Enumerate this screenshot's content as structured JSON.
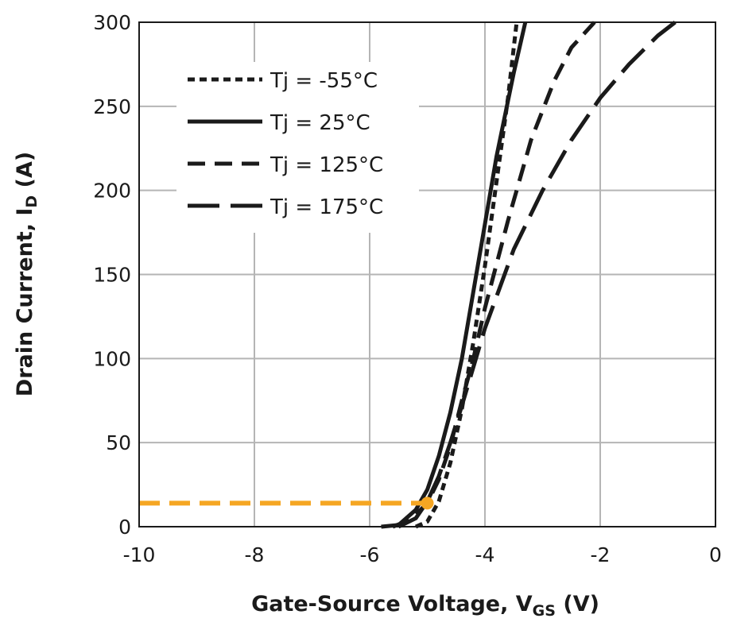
{
  "chart_data": {
    "type": "line",
    "xlabel": "Gate-Source Voltage, V",
    "xlabel_sub": "GS",
    "xlabel_unit": " (V)",
    "ylabel": "Drain Current, I",
    "ylabel_sub": "D",
    "ylabel_unit": " (A)",
    "xlim": [
      -10,
      0
    ],
    "ylim": [
      0,
      300
    ],
    "xticks": [
      -10,
      -8,
      -6,
      -4,
      -2,
      0
    ],
    "yticks": [
      0,
      50,
      100,
      150,
      200,
      250,
      300
    ],
    "grid": true,
    "legend_position": "top-left",
    "series": [
      {
        "name": "Tj = -55°C",
        "dash": "short-dash",
        "color": "#1a1a1a",
        "points": [
          [
            -5.2,
            0
          ],
          [
            -5.0,
            3
          ],
          [
            -4.8,
            15
          ],
          [
            -4.6,
            38
          ],
          [
            -4.4,
            70
          ],
          [
            -4.2,
            110
          ],
          [
            -4.0,
            155
          ],
          [
            -3.8,
            205
          ],
          [
            -3.6,
            255
          ],
          [
            -3.45,
            300
          ]
        ]
      },
      {
        "name": "Tj = 25°C",
        "dash": "solid",
        "color": "#1a1a1a",
        "points": [
          [
            -5.8,
            0
          ],
          [
            -5.5,
            1
          ],
          [
            -5.2,
            10
          ],
          [
            -5.0,
            22
          ],
          [
            -4.8,
            42
          ],
          [
            -4.6,
            68
          ],
          [
            -4.4,
            100
          ],
          [
            -4.2,
            140
          ],
          [
            -4.0,
            180
          ],
          [
            -3.8,
            220
          ],
          [
            -3.5,
            270
          ],
          [
            -3.3,
            300
          ]
        ]
      },
      {
        "name": "Tj = 125°C",
        "dash": "medium-dash",
        "color": "#1a1a1a",
        "points": [
          [
            -5.6,
            0
          ],
          [
            -5.3,
            4
          ],
          [
            -5.0,
            14
          ],
          [
            -4.8,
            28
          ],
          [
            -4.6,
            48
          ],
          [
            -4.4,
            75
          ],
          [
            -4.2,
            100
          ],
          [
            -4.0,
            130
          ],
          [
            -3.6,
            182
          ],
          [
            -3.2,
            230
          ],
          [
            -2.8,
            265
          ],
          [
            -2.5,
            285
          ],
          [
            -2.1,
            300
          ]
        ]
      },
      {
        "name": "Tj = 175°C",
        "dash": "long-dash",
        "color": "#1a1a1a",
        "points": [
          [
            -5.5,
            0
          ],
          [
            -5.2,
            5
          ],
          [
            -5.0,
            15
          ],
          [
            -4.8,
            30
          ],
          [
            -4.6,
            50
          ],
          [
            -4.4,
            72
          ],
          [
            -4.2,
            95
          ],
          [
            -4.0,
            118
          ],
          [
            -3.5,
            165
          ],
          [
            -3.0,
            200
          ],
          [
            -2.5,
            230
          ],
          [
            -2.0,
            255
          ],
          [
            -1.5,
            275
          ],
          [
            -1.0,
            292
          ],
          [
            -0.7,
            300
          ]
        ]
      }
    ],
    "annotations": [
      {
        "type": "reference-line",
        "color": "#f5a623",
        "from": [
          -10,
          14
        ],
        "to": [
          -5.0,
          14
        ],
        "marker_at": [
          -5.0,
          14
        ]
      }
    ]
  }
}
